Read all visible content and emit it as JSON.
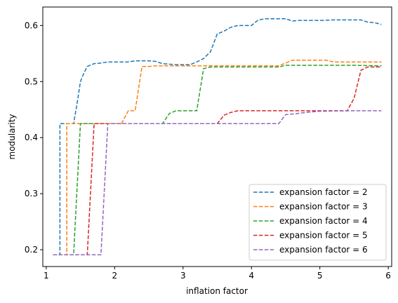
{
  "chart_data": {
    "type": "line",
    "title": "",
    "xlabel": "inflation factor",
    "ylabel": "modularity",
    "xlim": [
      0.95,
      6.05
    ],
    "ylim": [
      0.17,
      0.633
    ],
    "xticks": [
      1,
      2,
      3,
      4,
      5,
      6
    ],
    "yticks": [
      0.2,
      0.3,
      0.4,
      0.5,
      0.6
    ],
    "xtick_labels": [
      "1",
      "2",
      "3",
      "4",
      "5",
      "6"
    ],
    "ytick_labels": [
      "0.2",
      "0.3",
      "0.4",
      "0.5",
      "0.6"
    ],
    "grid": false,
    "legend_position": "lower-right",
    "line_style": "dashed",
    "series": [
      {
        "name": "expansion factor = 2",
        "color": "#1f77b4",
        "points": [
          [
            1.1,
            0.191
          ],
          [
            1.2,
            0.191
          ],
          [
            1.2,
            0.425
          ],
          [
            1.3,
            0.425
          ],
          [
            1.4,
            0.425
          ],
          [
            1.45,
            0.46
          ],
          [
            1.5,
            0.5
          ],
          [
            1.55,
            0.515
          ],
          [
            1.6,
            0.527
          ],
          [
            1.7,
            0.532
          ],
          [
            1.8,
            0.533
          ],
          [
            1.9,
            0.535
          ],
          [
            2.0,
            0.535
          ],
          [
            2.2,
            0.535
          ],
          [
            2.3,
            0.537
          ],
          [
            2.5,
            0.537
          ],
          [
            2.6,
            0.536
          ],
          [
            2.7,
            0.532
          ],
          [
            2.8,
            0.531
          ],
          [
            2.9,
            0.53
          ],
          [
            3.0,
            0.53
          ],
          [
            3.1,
            0.53
          ],
          [
            3.2,
            0.535
          ],
          [
            3.3,
            0.541
          ],
          [
            3.4,
            0.553
          ],
          [
            3.5,
            0.585
          ],
          [
            3.6,
            0.59
          ],
          [
            3.7,
            0.597
          ],
          [
            3.8,
            0.6
          ],
          [
            3.9,
            0.6
          ],
          [
            4.0,
            0.6
          ],
          [
            4.1,
            0.61
          ],
          [
            4.2,
            0.612
          ],
          [
            4.3,
            0.612
          ],
          [
            4.4,
            0.612
          ],
          [
            4.5,
            0.612
          ],
          [
            4.6,
            0.608
          ],
          [
            4.7,
            0.609
          ],
          [
            4.8,
            0.609
          ],
          [
            5.0,
            0.609
          ],
          [
            5.2,
            0.61
          ],
          [
            5.4,
            0.61
          ],
          [
            5.6,
            0.61
          ],
          [
            5.7,
            0.606
          ],
          [
            5.8,
            0.605
          ],
          [
            5.9,
            0.602
          ]
        ]
      },
      {
        "name": "expansion factor = 3",
        "color": "#ff7f0e",
        "points": [
          [
            1.1,
            0.191
          ],
          [
            1.3,
            0.191
          ],
          [
            1.3,
            0.425
          ],
          [
            1.4,
            0.425
          ],
          [
            2.1,
            0.425
          ],
          [
            2.2,
            0.448
          ],
          [
            2.3,
            0.448
          ],
          [
            2.4,
            0.527
          ],
          [
            2.5,
            0.527
          ],
          [
            2.6,
            0.528
          ],
          [
            3.0,
            0.528
          ],
          [
            3.5,
            0.528
          ],
          [
            4.0,
            0.528
          ],
          [
            4.4,
            0.528
          ],
          [
            4.5,
            0.533
          ],
          [
            4.6,
            0.538
          ],
          [
            5.0,
            0.538
          ],
          [
            5.1,
            0.538
          ],
          [
            5.2,
            0.535
          ],
          [
            5.5,
            0.535
          ],
          [
            5.9,
            0.535
          ]
        ]
      },
      {
        "name": "expansion factor = 4",
        "color": "#2ca02c",
        "points": [
          [
            1.1,
            0.191
          ],
          [
            1.4,
            0.191
          ],
          [
            1.5,
            0.425
          ],
          [
            2.0,
            0.425
          ],
          [
            2.7,
            0.425
          ],
          [
            2.8,
            0.443
          ],
          [
            2.9,
            0.448
          ],
          [
            3.2,
            0.448
          ],
          [
            3.3,
            0.523
          ],
          [
            3.4,
            0.526
          ],
          [
            4.0,
            0.526
          ],
          [
            4.4,
            0.526
          ],
          [
            4.5,
            0.529
          ],
          [
            5.0,
            0.529
          ],
          [
            5.5,
            0.529
          ],
          [
            5.9,
            0.528
          ]
        ]
      },
      {
        "name": "expansion factor = 5",
        "color": "#d62728",
        "points": [
          [
            1.1,
            0.191
          ],
          [
            1.6,
            0.191
          ],
          [
            1.7,
            0.425
          ],
          [
            2.0,
            0.425
          ],
          [
            3.0,
            0.425
          ],
          [
            3.5,
            0.425
          ],
          [
            3.6,
            0.44
          ],
          [
            3.7,
            0.445
          ],
          [
            3.8,
            0.448
          ],
          [
            4.0,
            0.448
          ],
          [
            4.5,
            0.448
          ],
          [
            5.0,
            0.448
          ],
          [
            5.4,
            0.448
          ],
          [
            5.5,
            0.47
          ],
          [
            5.6,
            0.52
          ],
          [
            5.7,
            0.526
          ],
          [
            5.9,
            0.526
          ]
        ]
      },
      {
        "name": "expansion factor = 6",
        "color": "#9467bd",
        "points": [
          [
            1.1,
            0.191
          ],
          [
            1.8,
            0.191
          ],
          [
            1.9,
            0.425
          ],
          [
            2.5,
            0.425
          ],
          [
            3.0,
            0.425
          ],
          [
            3.5,
            0.425
          ],
          [
            4.0,
            0.425
          ],
          [
            4.4,
            0.425
          ],
          [
            4.5,
            0.441
          ],
          [
            4.6,
            0.442
          ],
          [
            4.8,
            0.445
          ],
          [
            5.0,
            0.447
          ],
          [
            5.5,
            0.448
          ],
          [
            5.9,
            0.448
          ]
        ]
      }
    ]
  }
}
